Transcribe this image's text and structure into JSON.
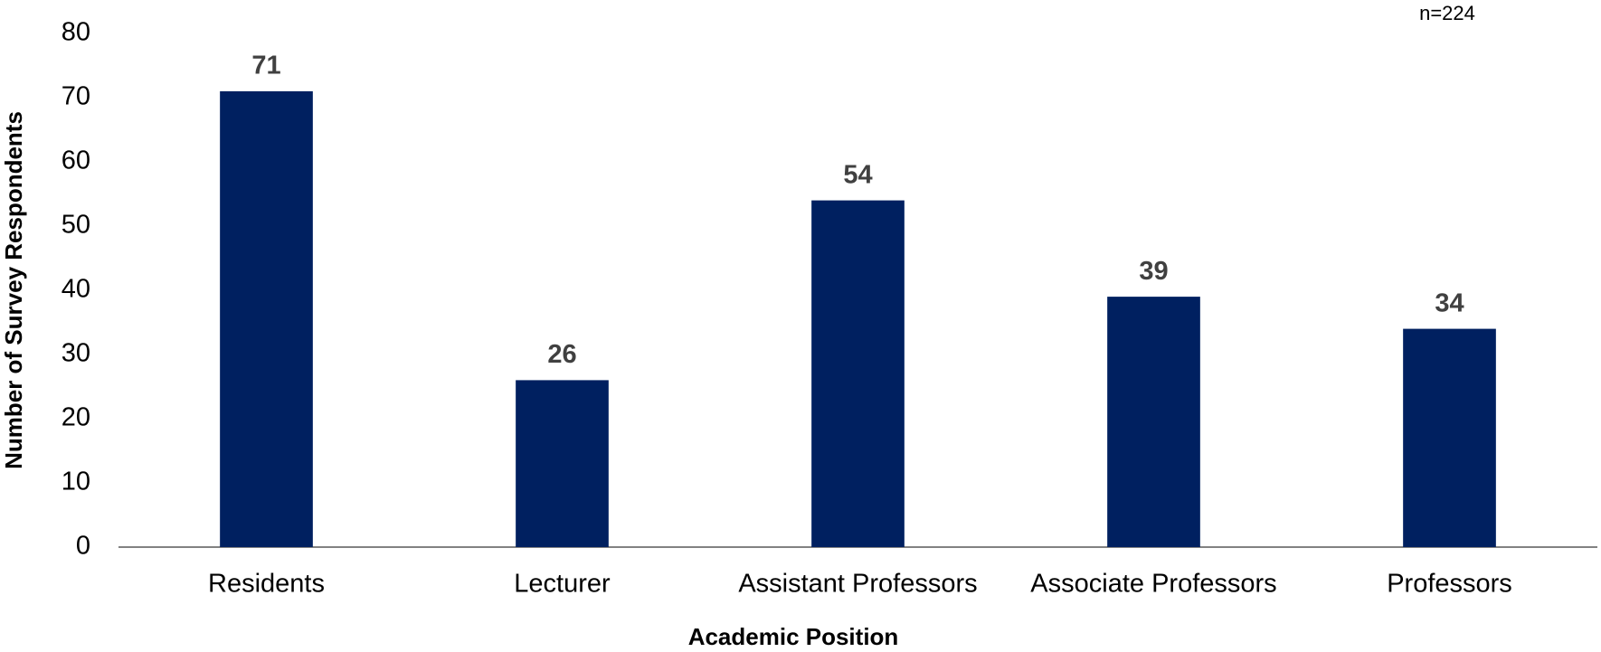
{
  "chart_data": {
    "type": "bar",
    "annotation": "n=224",
    "x_label": "Academic Position",
    "y_label": "Number of Survey Respondents",
    "categories": [
      "Residents",
      "Lecturer",
      "Assistant Professors",
      "Associate Professors",
      "Professors"
    ],
    "values": [
      71,
      26,
      54,
      39,
      34
    ],
    "color": "#002060",
    "ylim": [
      0,
      80
    ],
    "yticks": [
      0,
      10,
      20,
      30,
      40,
      50,
      60,
      70,
      80
    ],
    "grid": false
  }
}
